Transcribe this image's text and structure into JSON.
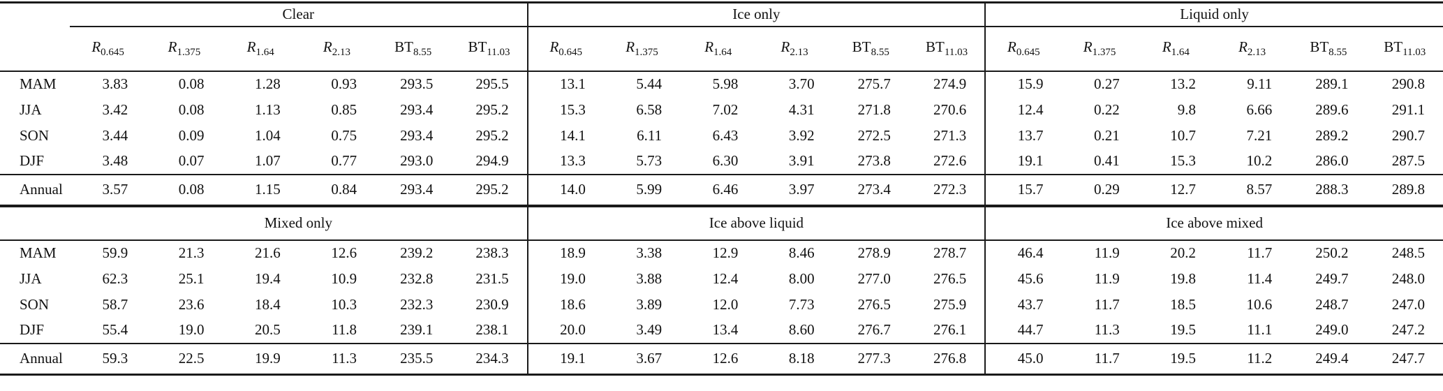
{
  "page": {
    "background": "#ffffff",
    "text_color": "#111111",
    "rule_color": "#1a1a1a"
  },
  "table": {
    "season_labels": [
      "MAM",
      "JJA",
      "SON",
      "DJF"
    ],
    "annual_label": "Annual",
    "column_headers": [
      {
        "symbol": "R",
        "italic": true,
        "subscript": "0.645"
      },
      {
        "symbol": "R",
        "italic": true,
        "subscript": "1.375"
      },
      {
        "symbol": "R",
        "italic": true,
        "subscript": "1.64"
      },
      {
        "symbol": "R",
        "italic": true,
        "subscript": "2.13"
      },
      {
        "symbol": "BT",
        "italic": false,
        "subscript": "8.55"
      },
      {
        "symbol": "BT",
        "italic": false,
        "subscript": "11.03"
      }
    ],
    "halves": [
      {
        "show_column_headers": true,
        "groups": [
          {
            "title": "Clear",
            "seasonal_rows": [
              [
                "3.83",
                "0.08",
                "1.28",
                "0.93",
                "293.5",
                "295.5"
              ],
              [
                "3.42",
                "0.08",
                "1.13",
                "0.85",
                "293.4",
                "295.2"
              ],
              [
                "3.44",
                "0.09",
                "1.04",
                "0.75",
                "293.4",
                "295.2"
              ],
              [
                "3.48",
                "0.07",
                "1.07",
                "0.77",
                "293.0",
                "294.9"
              ]
            ],
            "annual_row": [
              "3.57",
              "0.08",
              "1.15",
              "0.84",
              "293.4",
              "295.2"
            ]
          },
          {
            "title": "Ice only",
            "seasonal_rows": [
              [
                "13.1",
                "5.44",
                "5.98",
                "3.70",
                "275.7",
                "274.9"
              ],
              [
                "15.3",
                "6.58",
                "7.02",
                "4.31",
                "271.8",
                "270.6"
              ],
              [
                "14.1",
                "6.11",
                "6.43",
                "3.92",
                "272.5",
                "271.3"
              ],
              [
                "13.3",
                "5.73",
                "6.30",
                "3.91",
                "273.8",
                "272.6"
              ]
            ],
            "annual_row": [
              "14.0",
              "5.99",
              "6.46",
              "3.97",
              "273.4",
              "272.3"
            ]
          },
          {
            "title": "Liquid only",
            "seasonal_rows": [
              [
                "15.9",
                "0.27",
                "13.2",
                "9.11",
                "289.1",
                "290.8"
              ],
              [
                "12.4",
                "0.22",
                "9.8",
                "6.66",
                "289.6",
                "291.1"
              ],
              [
                "13.7",
                "0.21",
                "10.7",
                "7.21",
                "289.2",
                "290.7"
              ],
              [
                "19.1",
                "0.41",
                "15.3",
                "10.2",
                "286.0",
                "287.5"
              ]
            ],
            "annual_row": [
              "15.7",
              "0.29",
              "12.7",
              "8.57",
              "288.3",
              "289.8"
            ]
          }
        ]
      },
      {
        "show_column_headers": false,
        "groups": [
          {
            "title": "Mixed only",
            "seasonal_rows": [
              [
                "59.9",
                "21.3",
                "21.6",
                "12.6",
                "239.2",
                "238.3"
              ],
              [
                "62.3",
                "25.1",
                "19.4",
                "10.9",
                "232.8",
                "231.5"
              ],
              [
                "58.7",
                "23.6",
                "18.4",
                "10.3",
                "232.3",
                "230.9"
              ],
              [
                "55.4",
                "19.0",
                "20.5",
                "11.8",
                "239.1",
                "238.1"
              ]
            ],
            "annual_row": [
              "59.3",
              "22.5",
              "19.9",
              "11.3",
              "235.5",
              "234.3"
            ]
          },
          {
            "title": "Ice above liquid",
            "seasonal_rows": [
              [
                "18.9",
                "3.38",
                "12.9",
                "8.46",
                "278.9",
                "278.7"
              ],
              [
                "19.0",
                "3.88",
                "12.4",
                "8.00",
                "277.0",
                "276.5"
              ],
              [
                "18.6",
                "3.89",
                "12.0",
                "7.73",
                "276.5",
                "275.9"
              ],
              [
                "20.0",
                "3.49",
                "13.4",
                "8.60",
                "276.7",
                "276.1"
              ]
            ],
            "annual_row": [
              "19.1",
              "3.67",
              "12.6",
              "8.18",
              "277.3",
              "276.8"
            ]
          },
          {
            "title": "Ice above mixed",
            "seasonal_rows": [
              [
                "46.4",
                "11.9",
                "20.2",
                "11.7",
                "250.2",
                "248.5"
              ],
              [
                "45.6",
                "11.9",
                "19.8",
                "11.4",
                "249.7",
                "248.0"
              ],
              [
                "43.7",
                "11.7",
                "18.5",
                "10.6",
                "248.7",
                "247.0"
              ],
              [
                "44.7",
                "11.3",
                "19.5",
                "11.1",
                "249.0",
                "247.2"
              ]
            ],
            "annual_row": [
              "45.0",
              "11.7",
              "19.5",
              "11.2",
              "249.4",
              "247.7"
            ]
          }
        ]
      }
    ]
  }
}
